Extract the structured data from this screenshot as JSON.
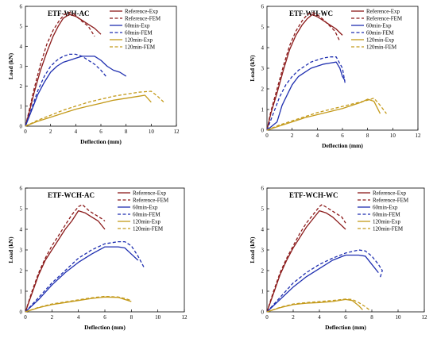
{
  "colors": {
    "reference": "#8b1a1a",
    "m60": "#1f2fb0",
    "m120": "#c49a1a"
  },
  "legend_entries": [
    "Reference-Exp",
    "Reference-FEM",
    "60min-Exp",
    "60min-FEM",
    "120min-Exp",
    "120min-FEM"
  ],
  "chart_data": [
    {
      "type": "line",
      "title": "ETF-WH-AC",
      "xlabel": "Deflection (mm)",
      "ylabel": "Load (kN)",
      "xlim": [
        0,
        12
      ],
      "ylim": [
        0,
        6
      ],
      "xticks": [
        0,
        2,
        4,
        6,
        8,
        10,
        12
      ],
      "yticks": [
        0,
        1,
        2,
        3,
        4,
        5,
        6
      ],
      "legend": "top-right",
      "series": [
        {
          "name": "Reference-Exp",
          "color": "#8b1a1a",
          "dash": false,
          "x": [
            0,
            0.3,
            0.7,
            1.2,
            1.7,
            2.2,
            2.6,
            3.0,
            3.5,
            4.0,
            4.5,
            5.0,
            5.5,
            6.0
          ],
          "y": [
            0,
            0.7,
            1.7,
            2.8,
            3.7,
            4.5,
            5.0,
            5.4,
            5.6,
            5.5,
            5.3,
            5.1,
            4.9,
            4.6
          ]
        },
        {
          "name": "Reference-FEM",
          "color": "#8b1a1a",
          "dash": true,
          "x": [
            0,
            0.3,
            0.7,
            1.2,
            1.7,
            2.2,
            2.7,
            3.1,
            3.5,
            3.9,
            4.4,
            5.0,
            5.5
          ],
          "y": [
            0,
            0.8,
            1.9,
            3.1,
            4.1,
            4.8,
            5.3,
            5.6,
            5.7,
            5.6,
            5.3,
            5.0,
            4.5
          ]
        },
        {
          "name": "60min-Exp",
          "color": "#1f2fb0",
          "dash": false,
          "x": [
            0,
            0.5,
            1.0,
            1.5,
            2.0,
            2.5,
            3.0,
            3.5,
            4.0,
            4.5,
            5.0,
            5.5,
            6.0,
            6.5,
            7.0,
            7.5,
            8.0
          ],
          "y": [
            0,
            0.8,
            1.6,
            2.2,
            2.7,
            3.0,
            3.2,
            3.3,
            3.4,
            3.5,
            3.5,
            3.5,
            3.3,
            3.0,
            2.8,
            2.7,
            2.5
          ]
        },
        {
          "name": "60min-FEM",
          "color": "#1f2fb0",
          "dash": true,
          "x": [
            0,
            0.5,
            1.0,
            1.5,
            2.0,
            2.5,
            3.0,
            3.5,
            4.0,
            4.5,
            5.0,
            5.5,
            6.0,
            6.4
          ],
          "y": [
            0,
            0.9,
            1.8,
            2.5,
            3.0,
            3.3,
            3.5,
            3.6,
            3.6,
            3.5,
            3.3,
            3.1,
            2.8,
            2.5
          ]
        },
        {
          "name": "120min-Exp",
          "color": "#c49a1a",
          "dash": false,
          "x": [
            0,
            1,
            2,
            3,
            4,
            5,
            6,
            7,
            8,
            9,
            9.5,
            10.0
          ],
          "y": [
            0,
            0.25,
            0.45,
            0.65,
            0.85,
            1.0,
            1.15,
            1.3,
            1.4,
            1.5,
            1.55,
            1.2
          ]
        },
        {
          "name": "120min-FEM",
          "color": "#c49a1a",
          "dash": true,
          "x": [
            0,
            1,
            2,
            3,
            4,
            5,
            6,
            7,
            8,
            9,
            10,
            10.5,
            11.0
          ],
          "y": [
            0,
            0.3,
            0.55,
            0.8,
            1.0,
            1.2,
            1.35,
            1.5,
            1.6,
            1.7,
            1.75,
            1.5,
            1.2
          ]
        }
      ]
    },
    {
      "type": "line",
      "title": "ETF-WH-WC",
      "xlabel": "Deflection (mm)",
      "ylabel": "Load (kN)",
      "xlim": [
        0,
        12
      ],
      "ylim": [
        0,
        6
      ],
      "xticks": [
        0,
        2,
        4,
        6,
        8,
        10,
        12
      ],
      "yticks": [
        0,
        1,
        2,
        3,
        4,
        5,
        6
      ],
      "legend": "top-right",
      "series": [
        {
          "name": "Reference-Exp",
          "color": "#8b1a1a",
          "dash": false,
          "x": [
            0,
            0.3,
            0.8,
            1.3,
            1.8,
            2.3,
            2.8,
            3.2,
            3.6,
            4.0,
            4.5,
            5.0,
            5.5,
            6.0
          ],
          "y": [
            0,
            0.8,
            1.8,
            2.9,
            3.9,
            4.6,
            5.1,
            5.4,
            5.6,
            5.5,
            5.3,
            5.1,
            4.9,
            4.6
          ]
        },
        {
          "name": "Reference-FEM",
          "color": "#8b1a1a",
          "dash": true,
          "x": [
            0,
            0.3,
            0.8,
            1.3,
            1.8,
            2.3,
            2.8,
            3.2,
            3.6,
            4.0,
            4.4,
            4.9,
            5.4,
            5.8
          ],
          "y": [
            0,
            0.9,
            2.0,
            3.1,
            4.1,
            4.8,
            5.3,
            5.6,
            5.7,
            5.6,
            5.4,
            5.1,
            4.8,
            4.3
          ]
        },
        {
          "name": "60min-Exp",
          "color": "#1f2fb0",
          "dash": false,
          "x": [
            0,
            0.8,
            1.2,
            1.6,
            2.0,
            2.5,
            3.0,
            3.5,
            4.0,
            4.5,
            5.0,
            5.5,
            5.8,
            6.0,
            6.2
          ],
          "y": [
            0,
            0.4,
            1.2,
            1.7,
            2.2,
            2.6,
            2.8,
            3.0,
            3.1,
            3.2,
            3.25,
            3.3,
            3.0,
            2.6,
            2.4
          ]
        },
        {
          "name": "60min-FEM",
          "color": "#1f2fb0",
          "dash": true,
          "x": [
            0,
            0.5,
            1.0,
            1.5,
            2.0,
            2.5,
            3.0,
            3.5,
            4.0,
            4.5,
            5.0,
            5.5,
            6.0,
            6.2
          ],
          "y": [
            0,
            0.8,
            1.6,
            2.2,
            2.6,
            2.9,
            3.1,
            3.3,
            3.4,
            3.5,
            3.55,
            3.55,
            3.0,
            2.3
          ]
        },
        {
          "name": "120min-Exp",
          "color": "#c49a1a",
          "dash": false,
          "x": [
            0,
            1,
            2,
            3,
            4,
            5,
            6,
            7,
            7.5,
            8.0,
            8.5,
            9.0
          ],
          "y": [
            0,
            0.2,
            0.4,
            0.6,
            0.75,
            0.9,
            1.05,
            1.25,
            1.35,
            1.5,
            1.4,
            0.8
          ]
        },
        {
          "name": "120min-FEM",
          "color": "#c49a1a",
          "dash": true,
          "x": [
            0,
            1,
            2,
            3,
            4,
            5,
            6,
            7,
            8,
            8.5,
            9.0,
            9.5
          ],
          "y": [
            0,
            0.25,
            0.45,
            0.65,
            0.85,
            1.0,
            1.15,
            1.3,
            1.45,
            1.55,
            1.2,
            0.8
          ]
        }
      ]
    },
    {
      "type": "line",
      "title": "ETF-WCH-AC",
      "xlabel": "Deflection (mm)",
      "ylabel": "Load (kN)",
      "xlim": [
        0,
        12
      ],
      "ylim": [
        0,
        6
      ],
      "xticks": [
        0,
        2,
        4,
        6,
        8,
        10,
        12
      ],
      "yticks": [
        0,
        1,
        2,
        3,
        4,
        5,
        6
      ],
      "legend": "top-right",
      "series": [
        {
          "name": "Reference-Exp",
          "color": "#8b1a1a",
          "dash": false,
          "x": [
            0,
            0.5,
            1.0,
            1.5,
            2.0,
            2.5,
            3.0,
            3.5,
            4.0,
            4.5,
            5.0,
            5.5,
            6.0
          ],
          "y": [
            0,
            0.9,
            1.8,
            2.5,
            3.0,
            3.5,
            4.0,
            4.4,
            4.9,
            4.8,
            4.6,
            4.4,
            4.0
          ]
        },
        {
          "name": "Reference-FEM",
          "color": "#8b1a1a",
          "dash": true,
          "x": [
            0,
            0.5,
            1.0,
            1.5,
            2.0,
            2.5,
            3.0,
            3.5,
            4.0,
            4.3,
            4.8,
            5.3,
            5.8,
            6.0
          ],
          "y": [
            0,
            1.0,
            1.9,
            2.6,
            3.2,
            3.7,
            4.2,
            4.7,
            5.1,
            5.2,
            4.9,
            4.7,
            4.5,
            4.4
          ]
        },
        {
          "name": "60min-Exp",
          "color": "#1f2fb0",
          "dash": false,
          "x": [
            0,
            1,
            2,
            3,
            4,
            5,
            6,
            7,
            7.5,
            8.0,
            8.5
          ],
          "y": [
            0,
            0.6,
            1.3,
            1.9,
            2.4,
            2.8,
            3.15,
            3.15,
            3.1,
            2.8,
            2.5
          ]
        },
        {
          "name": "60min-FEM",
          "color": "#1f2fb0",
          "dash": true,
          "x": [
            0,
            1,
            2,
            3,
            4,
            5,
            6,
            7,
            7.5,
            8.0,
            8.5,
            9.0
          ],
          "y": [
            0,
            0.7,
            1.4,
            2.0,
            2.6,
            3.0,
            3.3,
            3.4,
            3.4,
            3.2,
            2.7,
            2.1
          ]
        },
        {
          "name": "120min-Exp",
          "color": "#c49a1a",
          "dash": false,
          "x": [
            0,
            1,
            2,
            3,
            4,
            5,
            6,
            7,
            7.5,
            8.0
          ],
          "y": [
            0,
            0.2,
            0.35,
            0.45,
            0.55,
            0.65,
            0.72,
            0.7,
            0.6,
            0.5
          ]
        },
        {
          "name": "120min-FEM",
          "color": "#c49a1a",
          "dash": true,
          "x": [
            0,
            1,
            2,
            3,
            4,
            5,
            6,
            7,
            7.5,
            8.0
          ],
          "y": [
            0,
            0.22,
            0.38,
            0.48,
            0.58,
            0.68,
            0.75,
            0.72,
            0.65,
            0.55
          ]
        }
      ]
    },
    {
      "type": "line",
      "title": "ETF-WCH-WC",
      "xlabel": "Deflection (mm)",
      "ylabel": "Load (kN)",
      "xlim": [
        0,
        12
      ],
      "ylim": [
        0,
        6
      ],
      "xticks": [
        0,
        2,
        4,
        6,
        8,
        10,
        12
      ],
      "yticks": [
        0,
        1,
        2,
        3,
        4,
        5,
        6
      ],
      "legend": "top-right",
      "series": [
        {
          "name": "Reference-Exp",
          "color": "#8b1a1a",
          "dash": false,
          "x": [
            0,
            0.5,
            1.0,
            1.5,
            2.0,
            2.5,
            3.0,
            3.5,
            4.0,
            4.5,
            5.0,
            5.5,
            6.0
          ],
          "y": [
            0,
            0.9,
            1.8,
            2.5,
            3.1,
            3.6,
            4.1,
            4.5,
            4.9,
            4.8,
            4.6,
            4.3,
            4.0
          ]
        },
        {
          "name": "Reference-FEM",
          "color": "#8b1a1a",
          "dash": true,
          "x": [
            0,
            0.5,
            1.0,
            1.5,
            2.0,
            2.5,
            3.0,
            3.5,
            4.0,
            4.2,
            4.7,
            5.2,
            5.7,
            6.0
          ],
          "y": [
            0,
            1.0,
            1.9,
            2.6,
            3.2,
            3.8,
            4.3,
            4.7,
            5.1,
            5.2,
            5.0,
            4.8,
            4.6,
            4.3
          ]
        },
        {
          "name": "60min-Exp",
          "color": "#1f2fb0",
          "dash": false,
          "x": [
            0,
            1,
            2,
            3,
            4,
            5,
            6,
            7,
            7.5,
            8.0,
            8.5
          ],
          "y": [
            0,
            0.6,
            1.2,
            1.7,
            2.1,
            2.5,
            2.75,
            2.75,
            2.7,
            2.3,
            1.9
          ]
        },
        {
          "name": "60min-FEM",
          "color": "#1f2fb0",
          "dash": true,
          "x": [
            0,
            1,
            2,
            3,
            4,
            5,
            6,
            7,
            7.5,
            8.0,
            8.5,
            8.8,
            8.6
          ],
          "y": [
            0,
            0.7,
            1.4,
            1.9,
            2.3,
            2.6,
            2.85,
            3.0,
            2.95,
            2.7,
            2.3,
            2.0,
            1.6
          ]
        },
        {
          "name": "120min-Exp",
          "color": "#c49a1a",
          "dash": false,
          "x": [
            0,
            1,
            2,
            3,
            4,
            5,
            6,
            6.5,
            7.0,
            7.3
          ],
          "y": [
            0,
            0.2,
            0.35,
            0.42,
            0.45,
            0.5,
            0.6,
            0.55,
            0.3,
            0.1
          ]
        },
        {
          "name": "120min-FEM",
          "color": "#c49a1a",
          "dash": true,
          "x": [
            0,
            1,
            2,
            3,
            4,
            5,
            6,
            6.5,
            7.0,
            7.5,
            7.8
          ],
          "y": [
            0,
            0.22,
            0.38,
            0.45,
            0.5,
            0.55,
            0.62,
            0.6,
            0.45,
            0.25,
            0.1
          ]
        }
      ]
    }
  ]
}
